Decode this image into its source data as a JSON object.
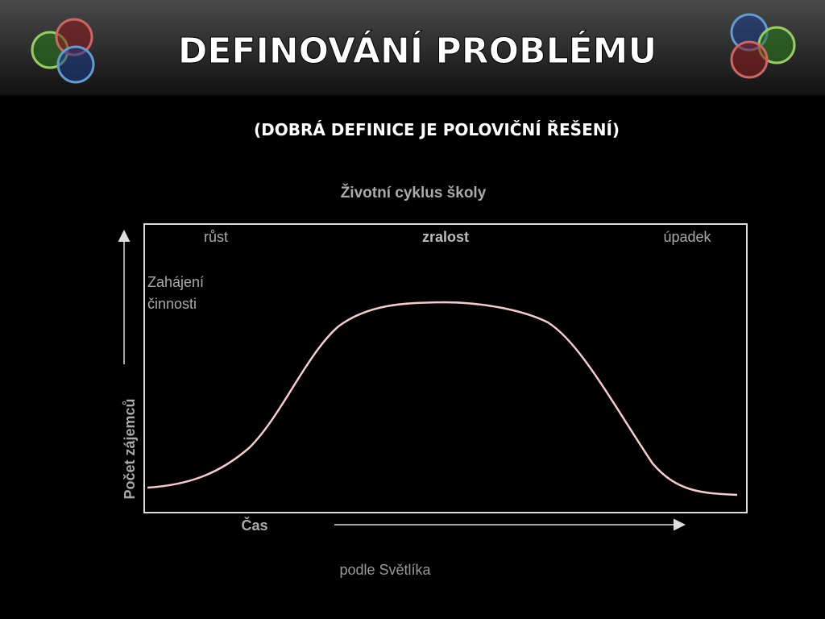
{
  "header": {
    "title": "DEFINOVÁNÍ PROBLÉMU"
  },
  "subtitle": "(DOBRÁ DEFINICE JE POLOVIČNÍ ŘEŠENÍ)",
  "diagram": {
    "title": "Životní cyklus školy",
    "phases": [
      "růst",
      "zralost",
      "úpadek"
    ],
    "annotation": [
      "Zahájení",
      "činnosti"
    ],
    "y_label": "Počet zájemců",
    "x_label": "Čas",
    "source": "podle Světlíka"
  }
}
